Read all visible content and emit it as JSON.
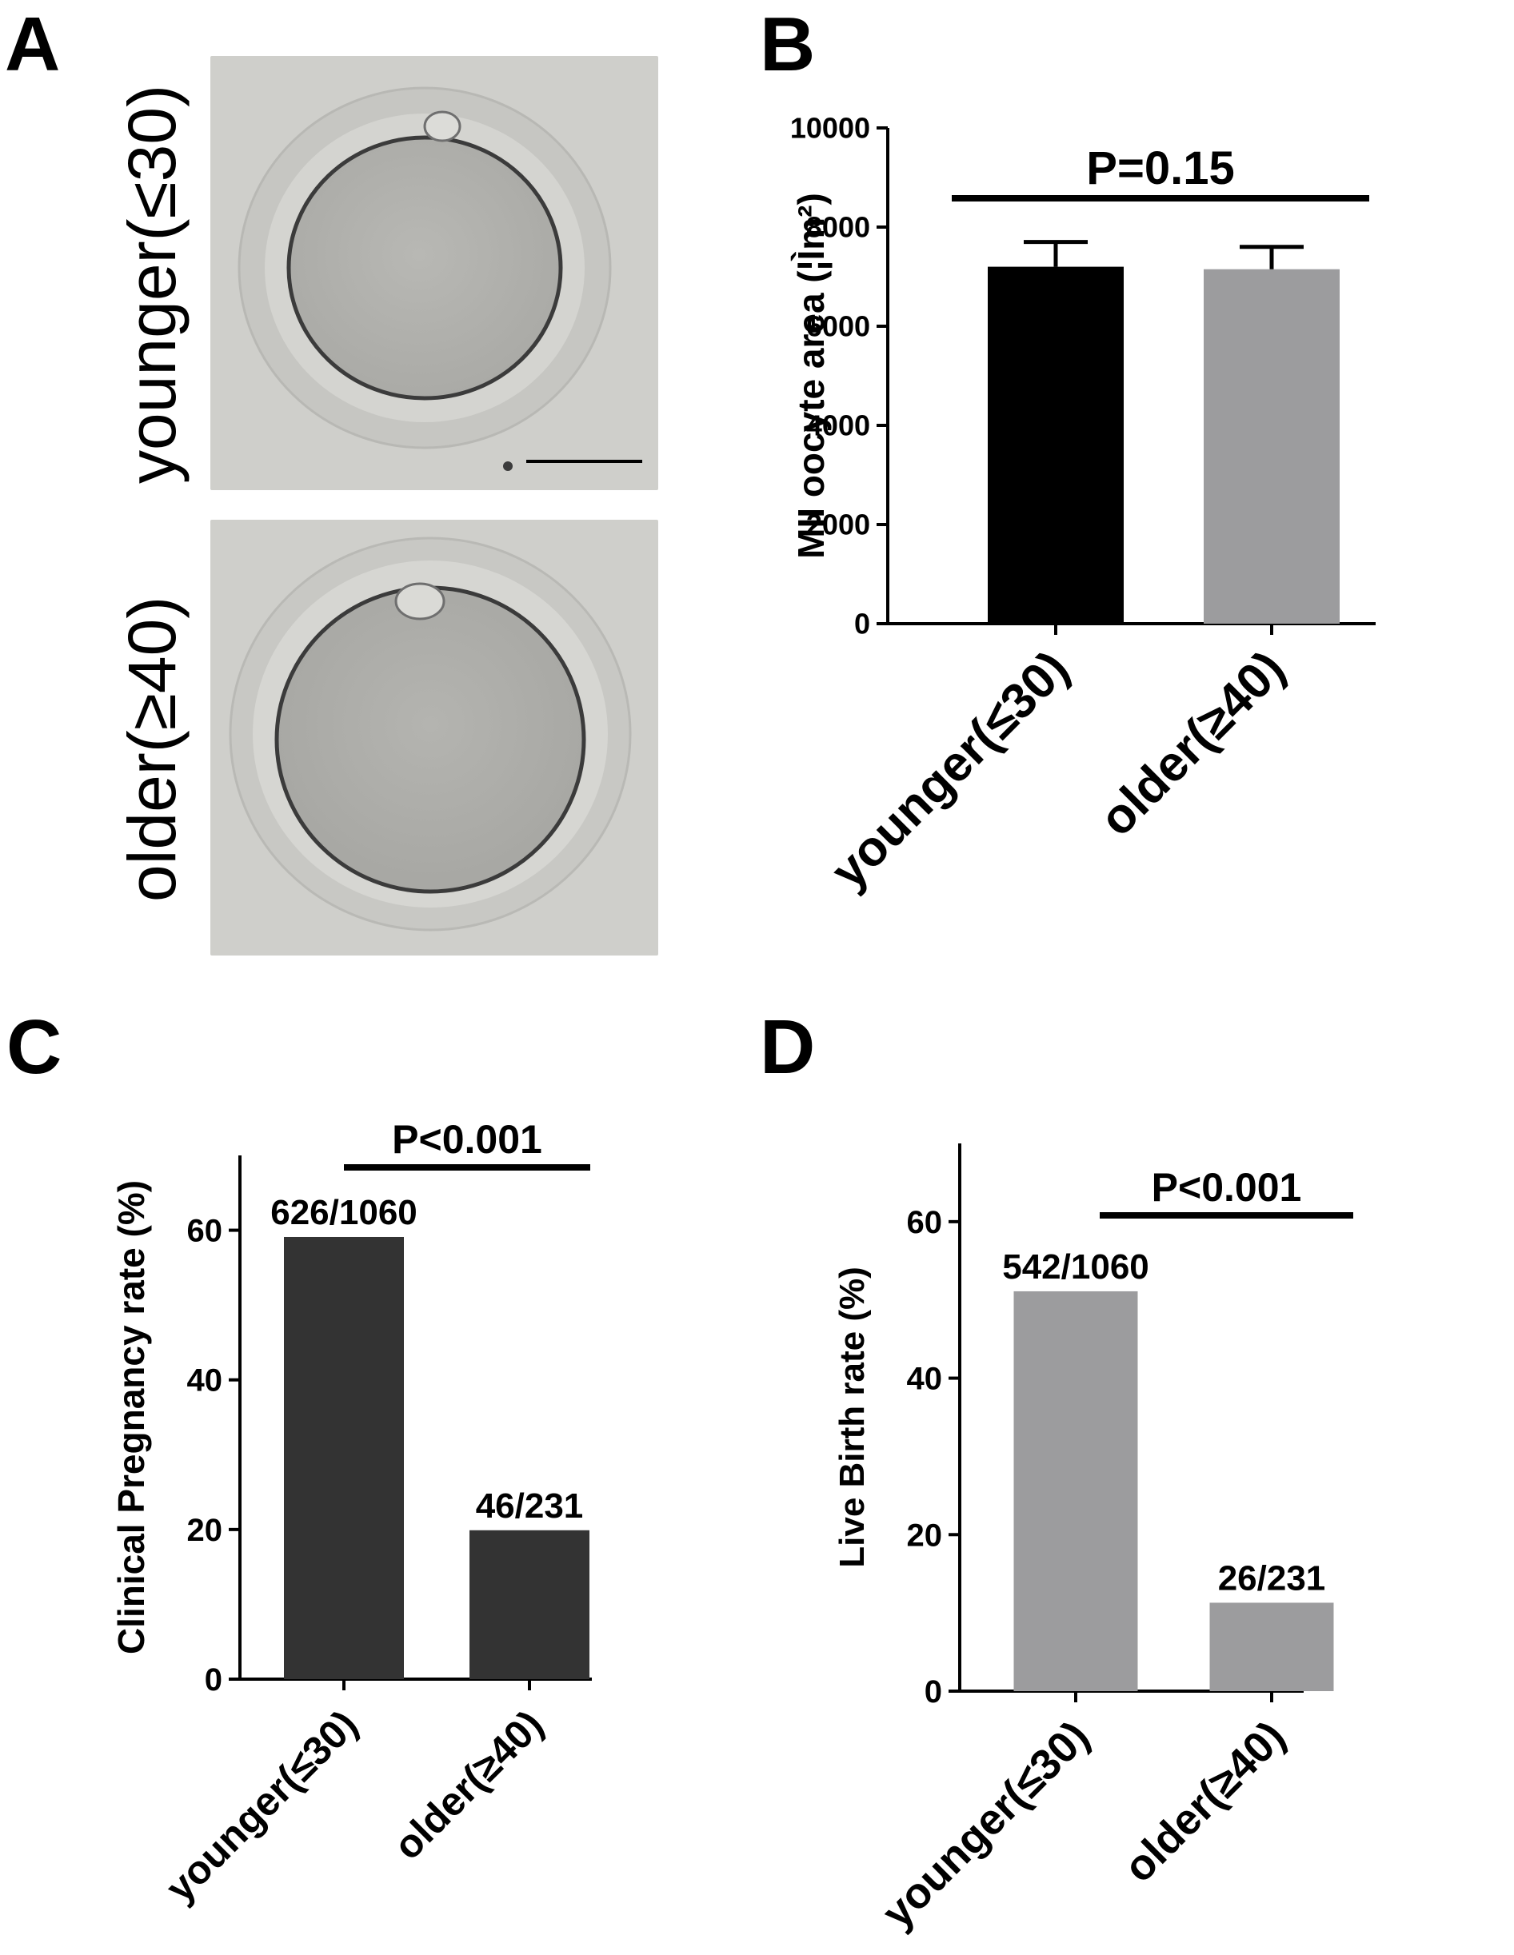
{
  "panels": {
    "a": {
      "letter": "A"
    },
    "b": {
      "letter": "B"
    },
    "c": {
      "letter": "C"
    },
    "d": {
      "letter": "D"
    }
  },
  "microscopy": {
    "row_labels": [
      "younger(≤30)",
      "older(≥40)"
    ]
  },
  "colors": {
    "black_bar": "#000000",
    "gray_bar": "#9c9c9e",
    "dark_bar": "#333333",
    "image_bg": "#cfcfcb"
  },
  "chart_data": [
    {
      "id": "b",
      "type": "bar",
      "categories": [
        "younger(≤30)",
        "older(≥40)"
      ],
      "values": [
        7200,
        7150
      ],
      "errors": [
        500,
        450
      ],
      "bar_colors": [
        "#000000",
        "#9c9c9e"
      ],
      "ylabel": "MII oocyte area (¦Ìm²)",
      "ylim": [
        0,
        10000
      ],
      "yticks": [
        0,
        2000,
        4000,
        6000,
        8000,
        10000
      ],
      "significance": "P=0.15",
      "data_labels": []
    },
    {
      "id": "c",
      "type": "bar",
      "categories": [
        "younger(≤30)",
        "older(≥40)"
      ],
      "values": [
        59.1,
        19.9
      ],
      "bar_colors": [
        "#333333",
        "#333333"
      ],
      "ylabel": "Clinical Pregnancy rate (%)",
      "ylim": [
        0,
        70
      ],
      "yticks": [
        0,
        20,
        40,
        60
      ],
      "significance": "P<0.001",
      "data_labels": [
        "626/1060",
        "46/231"
      ]
    },
    {
      "id": "d",
      "type": "bar",
      "categories": [
        "younger(≤30)",
        "older(≥40)"
      ],
      "values": [
        51.1,
        11.3
      ],
      "bar_colors": [
        "#9c9c9e",
        "#9c9c9e"
      ],
      "ylabel": "Live Birth rate (%)",
      "ylim": [
        0,
        70
      ],
      "yticks": [
        0,
        20,
        40,
        60
      ],
      "significance": "P<0.001",
      "data_labels": [
        "542/1060",
        "26/231"
      ]
    }
  ]
}
